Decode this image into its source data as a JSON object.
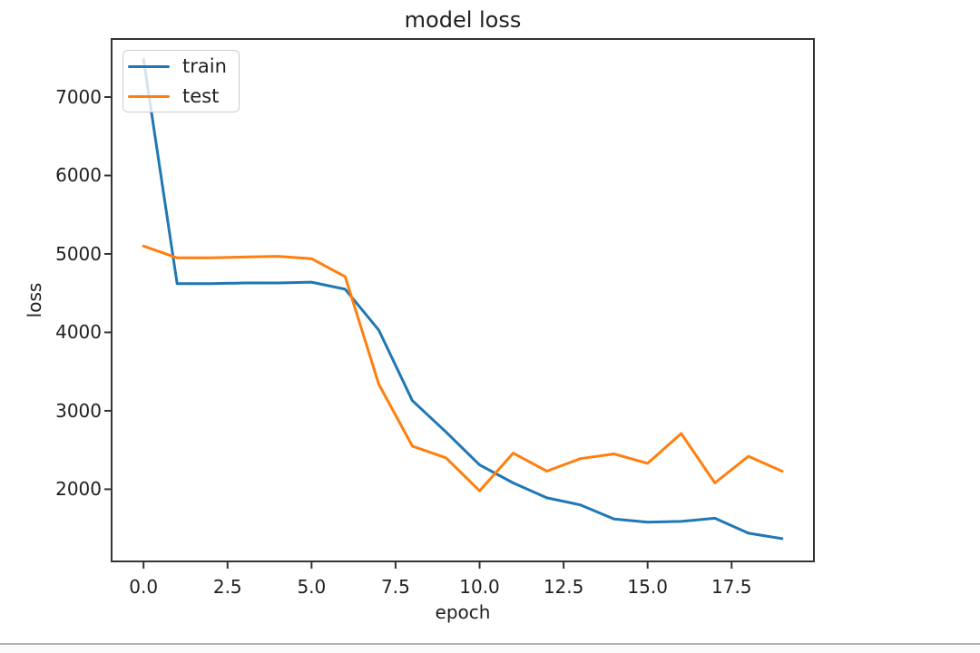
{
  "page": {
    "background": "#ffffff",
    "divider_color": "#b3b3b3"
  },
  "chart_data": {
    "type": "line",
    "title": "model loss",
    "xlabel": "epoch",
    "ylabel": "loss",
    "x": [
      0,
      1,
      2,
      3,
      4,
      5,
      6,
      7,
      8,
      9,
      10,
      11,
      12,
      13,
      14,
      15,
      16,
      17,
      18,
      19
    ],
    "series": [
      {
        "name": "train",
        "color": "#1f77b4",
        "values": [
          7480,
          4620,
          4620,
          4630,
          4630,
          4640,
          4550,
          4030,
          3130,
          2730,
          2310,
          2080,
          1890,
          1800,
          1620,
          1580,
          1590,
          1630,
          1440,
          1370
        ]
      },
      {
        "name": "test",
        "color": "#ff7f0e",
        "values": [
          5100,
          4950,
          4950,
          4960,
          4970,
          4940,
          4710,
          3340,
          2550,
          2400,
          1980,
          2460,
          2230,
          2390,
          2450,
          2330,
          2710,
          2080,
          2420,
          2230
        ]
      }
    ],
    "xlim": [
      -0.95,
      19.95
    ],
    "ylim": [
      1080,
      7740
    ],
    "xticks": {
      "values": [
        0,
        2.5,
        5,
        7.5,
        10,
        12.5,
        15,
        17.5
      ],
      "labels": [
        "0.0",
        "2.5",
        "5.0",
        "7.5",
        "10.0",
        "12.5",
        "15.0",
        "17.5"
      ]
    },
    "yticks": {
      "values": [
        2000,
        3000,
        4000,
        5000,
        6000,
        7000
      ],
      "labels": [
        "2000",
        "3000",
        "4000",
        "5000",
        "6000",
        "7000"
      ]
    },
    "legend": {
      "position": "upper left",
      "entries": [
        "train",
        "test"
      ]
    },
    "grid": false,
    "axis_color": "#333333",
    "text_color": "#1f1f1f"
  }
}
